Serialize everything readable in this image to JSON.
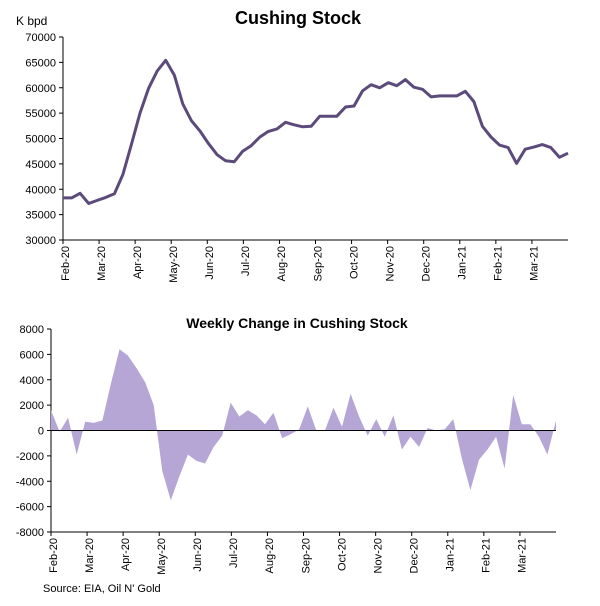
{
  "chart_data": [
    {
      "type": "line",
      "title": "Cushing Stock",
      "ylabel": "K bpd",
      "ylim": [
        30000,
        70000
      ],
      "yticks": [
        30000,
        35000,
        40000,
        45000,
        50000,
        55000,
        60000,
        65000,
        70000
      ],
      "grid": false,
      "line_color": "#5b4a7a",
      "xticks": [
        "Feb-20",
        "Mar-20",
        "Apr-20",
        "May-20",
        "Jun-20",
        "Jul-20",
        "Aug-20",
        "Sep-20",
        "Oct-20",
        "Nov-20",
        "Dec-20",
        "Jan-21",
        "Feb-21",
        "Mar-21"
      ],
      "values": [
        38300,
        38300,
        39200,
        37200,
        37800,
        38400,
        39100,
        42900,
        48900,
        55000,
        59900,
        63300,
        65400,
        62500,
        56800,
        53500,
        51500,
        49000,
        46800,
        45600,
        45400,
        47500,
        48600,
        50300,
        51400,
        51900,
        53200,
        52700,
        52300,
        52400,
        54400,
        54400,
        54400,
        56200,
        56400,
        59400,
        60600,
        60000,
        61000,
        60400,
        61600,
        60100,
        59700,
        58200,
        58400,
        58400,
        58400,
        59300,
        57300,
        52400,
        50300,
        48700,
        48200,
        45100,
        47900,
        48300,
        48800,
        48200,
        46300,
        47100
      ]
    },
    {
      "type": "area",
      "title": "Weekly Change in Cushing Stock",
      "ylim": [
        -8000,
        8000
      ],
      "yticks": [
        -8000,
        -6000,
        -4000,
        -2000,
        0,
        2000,
        4000,
        6000,
        8000
      ],
      "grid": false,
      "fill_color": "#b5a6d6",
      "xticks": [
        "Feb-20",
        "Mar-20",
        "Apr-20",
        "May-20",
        "Jun-20",
        "Jul-20",
        "Aug-20",
        "Sep-20",
        "Oct-20",
        "Nov-20",
        "Dec-20",
        "Jan-21",
        "Feb-21",
        "Mar-21"
      ],
      "values": [
        1600,
        -100,
        1000,
        -1900,
        700,
        600,
        800,
        3700,
        6400,
        5900,
        4900,
        3800,
        2000,
        -3200,
        -5500,
        -3600,
        -1900,
        -2400,
        -2600,
        -1300,
        -400,
        2200,
        1100,
        1600,
        1200,
        500,
        1400,
        -600,
        -300,
        100,
        1900,
        0,
        0,
        1800,
        300,
        2900,
        1100,
        -400,
        900,
        -500,
        1200,
        -1500,
        -500,
        -1300,
        200,
        0,
        100,
        900,
        -2200,
        -4700,
        -2300,
        -1500,
        -500,
        -3000,
        2800,
        500,
        500,
        -500,
        -1900,
        800
      ],
      "source": "Source: EIA, Oil N' Gold"
    }
  ]
}
